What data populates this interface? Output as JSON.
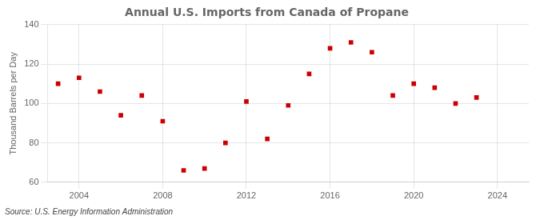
{
  "chart_data": {
    "type": "scatter",
    "title": "Annual U.S. Imports from Canada of Propane",
    "ylabel": "Thousand Barrels per Day",
    "annotation": "Source: U.S. Energy Information Administration",
    "x": [
      2003,
      2004,
      2005,
      2006,
      2007,
      2008,
      2009,
      2010,
      2011,
      2012,
      2013,
      2014,
      2015,
      2016,
      2017,
      2018,
      2019,
      2020,
      2021,
      2022,
      2023
    ],
    "values": [
      110,
      113,
      106,
      94,
      104,
      91,
      66,
      67,
      80,
      101,
      82,
      99,
      115,
      128,
      131,
      126,
      104,
      110,
      108,
      100,
      103
    ],
    "xlim": [
      2002.5,
      2025.5
    ],
    "ylim": [
      60,
      140
    ],
    "xticks": [
      2004,
      2008,
      2012,
      2016,
      2020,
      2024
    ],
    "yticks": [
      60,
      80,
      100,
      120,
      140
    ],
    "color": "#cc0000",
    "marker": "square",
    "grid": true
  }
}
